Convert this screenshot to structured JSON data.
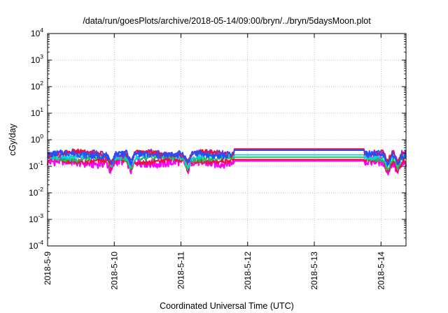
{
  "chart_data": {
    "type": "line",
    "title": "/data/run/goesPlots/archive/2018-05-14/09:00/bryn/../bryn/5daysMoon.plot",
    "xlabel": "Coordinated Universal Time (UTC)",
    "ylabel": "cGy/day",
    "y_scale": "log",
    "ylim": [
      0.0001,
      10000
    ],
    "xlim": [
      "2018-05-09T00:00",
      "2018-05-14T09:00"
    ],
    "grid": true,
    "x_ticks": [
      "2018-5-9",
      "2018-5-10",
      "2018-5-11",
      "2018-5-12",
      "2018-5-13",
      "2018-5-14"
    ],
    "y_ticks": [
      {
        "base": "10",
        "exp": "-4"
      },
      {
        "base": "10",
        "exp": "-3"
      },
      {
        "base": "10",
        "exp": "-2"
      },
      {
        "base": "10",
        "exp": "-1"
      },
      {
        "base": "10",
        "exp": "0"
      },
      {
        "base": "10",
        "exp": "1"
      },
      {
        "base": "10",
        "exp": "2"
      },
      {
        "base": "10",
        "exp": "3"
      },
      {
        "base": "10",
        "exp": "4"
      }
    ],
    "flat_interval": [
      "2018-05-11T19:00",
      "2018-05-13T18:00"
    ],
    "series": [
      {
        "color": "#ff00ff",
        "baseline": 0.14,
        "flat_value": 0.16,
        "noise_amp": 0.33
      },
      {
        "color": "#e8103c",
        "baseline": 0.16,
        "flat_value": 0.18,
        "noise_amp": 0.22
      },
      {
        "color": "#20c050",
        "baseline": 0.2,
        "flat_value": 0.22,
        "noise_amp": 0.18
      },
      {
        "color": "#00d8d8",
        "baseline": 0.24,
        "flat_value": 0.27,
        "noise_amp": 0.18
      },
      {
        "color": "#8030c8",
        "baseline": 0.3,
        "flat_value": 0.42,
        "noise_amp": 0.2
      },
      {
        "color": "#e8103c",
        "baseline": 0.31,
        "flat_value": 0.45,
        "noise_amp": 0.2
      },
      {
        "color": "#2050ff",
        "baseline": 0.28,
        "flat_value": 0.4,
        "noise_amp": 0.24
      }
    ]
  }
}
